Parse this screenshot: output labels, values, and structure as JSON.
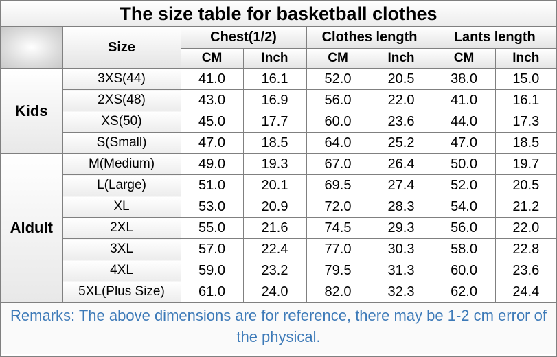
{
  "title": "The size table for basketball clothes",
  "header": {
    "size_label": "Size",
    "groups": [
      {
        "label": "Chest(1/2)",
        "units": [
          "CM",
          "Inch"
        ]
      },
      {
        "label": "Clothes length",
        "units": [
          "CM",
          "Inch"
        ]
      },
      {
        "label": "Lants length",
        "units": [
          "CM",
          "Inch"
        ]
      }
    ]
  },
  "sections": [
    {
      "label": "Kids",
      "rows": [
        {
          "size": "3XS(44)",
          "values": [
            "41.0",
            "16.1",
            "52.0",
            "20.5",
            "38.0",
            "15.0"
          ]
        },
        {
          "size": "2XS(48)",
          "values": [
            "43.0",
            "16.9",
            "56.0",
            "22.0",
            "41.0",
            "16.1"
          ]
        },
        {
          "size": "XS(50)",
          "values": [
            "45.0",
            "17.7",
            "60.0",
            "23.6",
            "44.0",
            "17.3"
          ]
        },
        {
          "size": "S(Small)",
          "values": [
            "47.0",
            "18.5",
            "64.0",
            "25.2",
            "47.0",
            "18.5"
          ]
        }
      ]
    },
    {
      "label": "Aldult",
      "rows": [
        {
          "size": "M(Medium)",
          "values": [
            "49.0",
            "19.3",
            "67.0",
            "26.4",
            "50.0",
            "19.7"
          ]
        },
        {
          "size": "L(Large)",
          "values": [
            "51.0",
            "20.1",
            "69.5",
            "27.4",
            "52.0",
            "20.5"
          ]
        },
        {
          "size": "XL",
          "values": [
            "53.0",
            "20.9",
            "72.0",
            "28.3",
            "54.0",
            "21.2"
          ]
        },
        {
          "size": "2XL",
          "values": [
            "55.0",
            "21.6",
            "74.5",
            "29.3",
            "56.0",
            "22.0"
          ]
        },
        {
          "size": "3XL",
          "values": [
            "57.0",
            "22.4",
            "77.0",
            "30.3",
            "58.0",
            "22.8"
          ]
        },
        {
          "size": "4XL",
          "values": [
            "59.0",
            "23.2",
            "79.5",
            "31.3",
            "60.0",
            "23.6"
          ]
        },
        {
          "size": "5XL(Plus Size)",
          "values": [
            "61.0",
            "24.0",
            "82.0",
            "32.3",
            "62.0",
            "24.4"
          ]
        }
      ]
    }
  ],
  "remarks": "Remarks: The above dimensions are for reference, there may be 1-2 cm error of the physical.",
  "colors": {
    "remarks_text": "#3d7ab8",
    "grid": "#808080"
  }
}
